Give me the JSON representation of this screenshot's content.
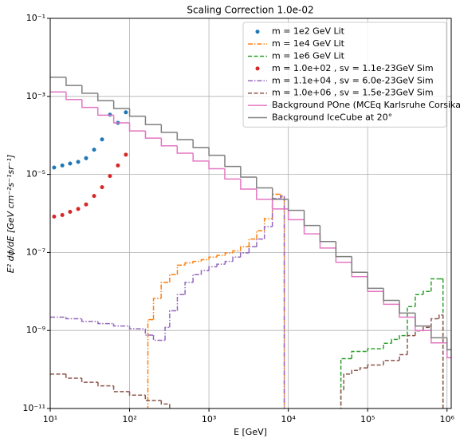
{
  "chart_data": {
    "type": "line",
    "title": "Scaling Correction 1.0e-02",
    "xlabel": "E [GeV]",
    "ylabel": "E² dϕ/dE [GeV cm⁻²s⁻¹sr⁻¹]",
    "xscale": "log",
    "yscale": "log",
    "grid": true,
    "legend": "upper right",
    "xlim": [
      10,
      1130000
    ],
    "ylim": [
      1e-11,
      0.1
    ],
    "xticks": [
      {
        "value": 10,
        "label": "10¹"
      },
      {
        "value": 100,
        "label": "10²"
      },
      {
        "value": 1000,
        "label": "10³"
      },
      {
        "value": 10000,
        "label": "10⁴"
      },
      {
        "value": 100000,
        "label": "10⁵"
      },
      {
        "value": 1000000,
        "label": "10⁶"
      }
    ],
    "yticks": [
      {
        "value": 1e-11,
        "label": "10⁻¹¹"
      },
      {
        "value": 1e-09,
        "label": "10⁻⁹"
      },
      {
        "value": 1e-07,
        "label": "10⁻⁷"
      },
      {
        "value": 1e-05,
        "label": "10⁻⁵"
      },
      {
        "value": 0.001,
        "label": "10⁻³"
      },
      {
        "value": 0.1,
        "label": "10⁻¹"
      }
    ],
    "series": [
      {
        "name": "m = 1e2 GeV Lit",
        "color": "#1f77b4",
        "style": "dots",
        "x": [
          11.2,
          14.2,
          17.8,
          22.5,
          28.3,
          35.7,
          45.0,
          56.6,
          71.3,
          89.8
        ],
        "values": [
          1.5e-05,
          1.7e-05,
          1.9e-05,
          2.1e-05,
          2.6e-05,
          4.3e-05,
          7.9e-05,
          0.00034,
          0.00021,
          0.00039
        ]
      },
      {
        "name": "m = 1e4 GeV Lit",
        "color": "#ff7f0e",
        "style": "dashdot",
        "x": [
          160,
          170,
          200,
          250,
          320,
          400,
          500,
          630,
          800,
          1000,
          1260,
          1600,
          2000,
          2500,
          3200,
          4000,
          5000,
          6300,
          8000,
          8900
        ],
        "values": [
          1e-12,
          1.9e-09,
          6.6e-09,
          1.7e-08,
          2.7e-08,
          4.7e-08,
          5.4e-08,
          5.9e-08,
          6.5e-08,
          7.6e-08,
          8.4e-08,
          9.7e-08,
          1.1e-07,
          1.4e-07,
          2.2e-07,
          3.6e-07,
          7.3e-07,
          3.1e-06,
          2.6e-06,
          1e-12
        ]
      },
      {
        "name": "m = 1e6 GeV Lit",
        "color": "#2ca02c",
        "style": "dashed",
        "x": [
          40000,
          46000,
          63000,
          100000,
          158000,
          200000,
          251000,
          316000,
          398000,
          501000,
          631000,
          794000,
          890000
        ],
        "values": [
          1e-12,
          1.9e-10,
          2.9e-10,
          3.4e-10,
          4.7e-10,
          5.9e-10,
          7.4e-10,
          4.1e-09,
          8.3e-09,
          1e-08,
          2.1e-08,
          2.1e-08,
          1e-12
        ]
      },
      {
        "name": "m = 1.0e+02 , sv = 1.1e-23GeV Sim",
        "color": "#d62728",
        "style": "dots",
        "x": [
          11.2,
          14.2,
          17.8,
          22.5,
          28.3,
          35.7,
          45.0,
          56.6,
          71.3,
          89.8
        ],
        "values": [
          8.3e-07,
          9.1e-07,
          1.1e-06,
          1.3e-06,
          1.7e-06,
          2.8e-06,
          4.7e-06,
          9.1e-06,
          1.7e-05,
          3.2e-05
        ]
      },
      {
        "name": "m = 1.1e+04 , sv = 6.0e-23GeV Sim",
        "color": "#9467bd",
        "style": "dashdot",
        "x": [
          10,
          15.8,
          25,
          40,
          63,
          100,
          158,
          200,
          280,
          320,
          400,
          500,
          630,
          800,
          1000,
          1260,
          1600,
          2000,
          2500,
          3200,
          4000,
          5000,
          6300,
          8000,
          8900
        ],
        "values": [
          2.2e-09,
          2e-09,
          1.7e-09,
          1.5e-09,
          1.3e-09,
          1.1e-09,
          7.6e-10,
          5.6e-10,
          1.2e-09,
          3.2e-09,
          8.3e-09,
          1.7e-08,
          2.7e-08,
          3.4e-08,
          4.3e-08,
          5e-08,
          5.9e-08,
          7.6e-08,
          9.7e-08,
          1.4e-07,
          2.2e-07,
          4.6e-07,
          2.4e-06,
          2.8e-06,
          1e-12
        ]
      },
      {
        "name": "m = 1.0e+06 , sv = 1.5e-23GeV Sim",
        "color": "#8c564b",
        "style": "dashed",
        "x": [
          10,
          15.8,
          25,
          40,
          63,
          100,
          158,
          251,
          320,
          46000,
          50000,
          63000,
          80000,
          100000,
          158000,
          251000,
          316000,
          398000,
          501000,
          631000,
          794000,
          890000
        ],
        "values": [
          7.6e-11,
          6e-11,
          4.7e-11,
          3.8e-11,
          2.7e-11,
          2.2e-11,
          1.6e-11,
          1.3e-11,
          1e-12,
          3e-11,
          7.6e-11,
          9.5e-11,
          1.1e-10,
          1.3e-10,
          1.7e-10,
          2.4e-10,
          7.4e-10,
          9.8e-10,
          1.2e-09,
          2e-09,
          2.5e-09,
          1e-12
        ]
      },
      {
        "name": "Background POne (MCEq Karlsruhe Corsika)",
        "color": "#e377c2",
        "style": "solid",
        "x": [
          10,
          15.85,
          25.12,
          39.81,
          63.1,
          100,
          158.5,
          251.2,
          398.1,
          631,
          1000,
          1585,
          2512,
          3981,
          6310,
          10000,
          15850,
          25120,
          39810,
          63100,
          100000,
          158500,
          251200,
          398100,
          631000,
          1000000
        ],
        "values": [
          0.0013,
          0.00083,
          0.00052,
          0.00033,
          0.00021,
          0.00013,
          8.5e-05,
          5.4e-05,
          3.5e-05,
          2.2e-05,
          1.4e-05,
          7.6e-06,
          4.2e-06,
          2.3e-06,
          1.3e-06,
          6.9e-07,
          3e-07,
          1.3e-07,
          5.6e-08,
          2.4e-08,
          1e-08,
          4.7e-09,
          2.2e-09,
          1e-09,
          4.8e-10,
          2e-10
        ]
      },
      {
        "name": "Background IceCube at 20°",
        "color": "#7f7f7f",
        "style": "solid",
        "x": [
          10,
          15.85,
          25.12,
          39.81,
          63.1,
          100,
          158.5,
          251.2,
          398.1,
          631,
          1000,
          1585,
          2512,
          3981,
          6310,
          10000,
          15850,
          25120,
          39810,
          63100,
          100000,
          158500,
          251200,
          398100,
          631000,
          1000000
        ],
        "values": [
          0.0031,
          0.0019,
          0.0012,
          0.00078,
          0.00049,
          0.00031,
          0.00019,
          0.00012,
          7.8e-05,
          4.9e-05,
          3.1e-05,
          1.6e-05,
          8.5e-06,
          4.5e-06,
          2.3e-06,
          1.2e-06,
          4.9e-07,
          1.9e-07,
          7.8e-08,
          3.1e-08,
          1.2e-08,
          5.9e-09,
          2.8e-09,
          1.3e-09,
          6.5e-10,
          3.2e-10
        ]
      }
    ]
  }
}
